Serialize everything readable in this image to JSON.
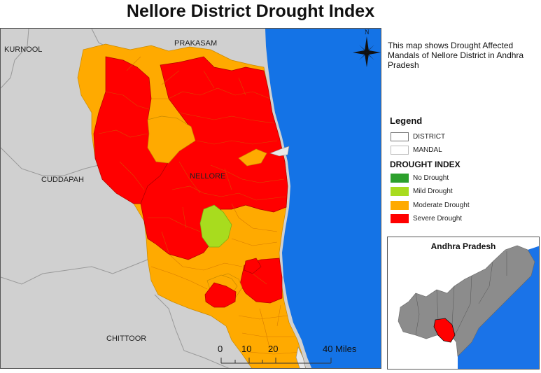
{
  "title": "Nellore District Drought Index",
  "description": "This map shows Drought Affected Mandals of Nellore District in Andhra Pradesh",
  "north_label": "N",
  "regions": {
    "kurnool": "KURNOOL",
    "prakasam": "PRAKASAM",
    "cuddapah": "CUDDAPAH",
    "nellore": "NELLORE",
    "chittoor": "CHITTOOR"
  },
  "scale_bar": {
    "ticks": [
      "0",
      "10",
      "20",
      "40 Miles"
    ]
  },
  "legend": {
    "title": "Legend",
    "boundaries": [
      {
        "label": "DISTRICT",
        "color": "#ffffff"
      },
      {
        "label": "MANDAL",
        "color": "#ffffff"
      }
    ],
    "drought_title": "DROUGHT INDEX",
    "classes": [
      {
        "label": "No Drought",
        "color": "#2ca02c"
      },
      {
        "label": "Mild Drought",
        "color": "#a8dc1e"
      },
      {
        "label": "Moderate Drought",
        "color": "#ffaa00"
      },
      {
        "label": "Severe Drought",
        "color": "#ff0000"
      }
    ]
  },
  "inset": {
    "title": "Andhra Pradesh",
    "colors": {
      "sea": "#1a73e8",
      "state": "#8c8c8c",
      "highlight": "#ff0000"
    }
  },
  "colors": {
    "sea": "#1473e6",
    "land": "#d0d0d0",
    "moderate": "#ffaa00",
    "severe": "#ff0000",
    "mild": "#a8dc1e"
  }
}
